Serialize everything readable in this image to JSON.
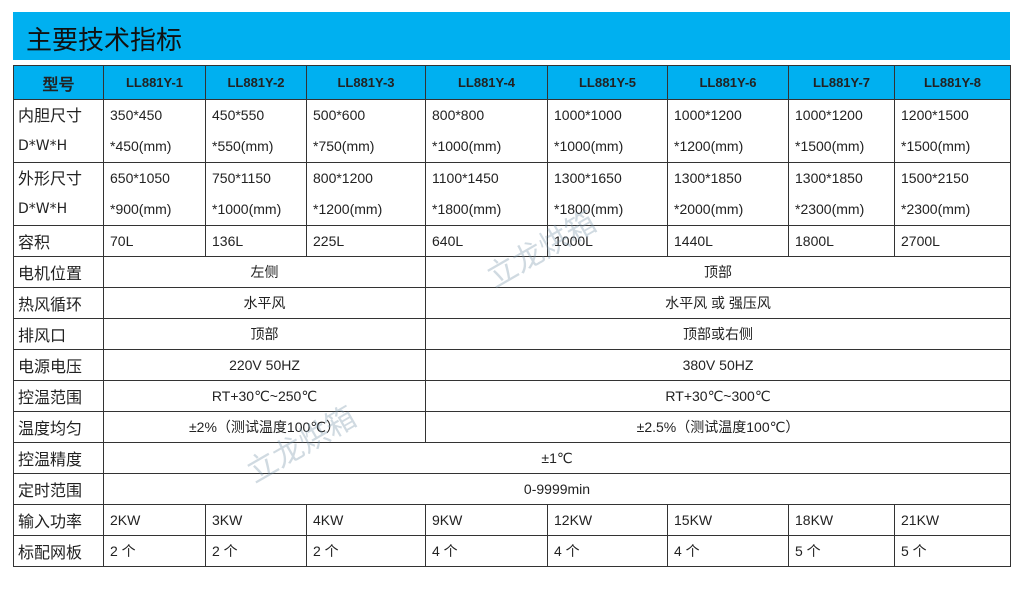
{
  "title": "主要技术指标",
  "watermark": "立龙烘箱",
  "header": {
    "label": "型号",
    "models": [
      "LL881Y-1",
      "LL881Y-2",
      "LL881Y-3",
      "LL881Y-4",
      "LL881Y-5",
      "LL881Y-6",
      "LL881Y-7",
      "LL881Y-8"
    ]
  },
  "inner_size": {
    "label1": "内胆尺寸",
    "label2": "D*W*H",
    "values": [
      [
        "350*450",
        "*450(mm)"
      ],
      [
        "450*550",
        "*550(mm)"
      ],
      [
        "500*600",
        "*750(mm)"
      ],
      [
        "800*800",
        "*1000(mm)"
      ],
      [
        "1000*1000",
        "*1000(mm)"
      ],
      [
        "1000*1200",
        "*1200(mm)"
      ],
      [
        "1000*1200",
        "*1500(mm)"
      ],
      [
        "1200*1500",
        "*1500(mm)"
      ]
    ]
  },
  "outer_size": {
    "label1": "外形尺寸",
    "label2": "D*W*H",
    "values": [
      [
        "650*1050",
        "*900(mm)"
      ],
      [
        "750*1150",
        "*1000(mm)"
      ],
      [
        "800*1200",
        "*1200(mm)"
      ],
      [
        "1100*1450",
        "*1800(mm)"
      ],
      [
        "1300*1650",
        "*1800(mm)"
      ],
      [
        "1300*1850",
        "*2000(mm)"
      ],
      [
        "1300*1850",
        "*2300(mm)"
      ],
      [
        "1500*2150",
        "*2300(mm)"
      ]
    ]
  },
  "volume": {
    "label": "容积",
    "values": [
      "70L",
      "136L",
      "225L",
      "640L",
      "1000L",
      "1440L",
      "1800L",
      "2700L"
    ]
  },
  "motor": {
    "label": "电机位置",
    "a": "左侧",
    "b": "顶部"
  },
  "airflow": {
    "label": "热风循环",
    "a": "水平风",
    "b": "水平风 或 强压风"
  },
  "exhaust": {
    "label": "排风口",
    "a": "顶部",
    "b": "顶部或右侧"
  },
  "voltage": {
    "label": "电源电压",
    "a": "220V 50HZ",
    "b": "380V 50HZ"
  },
  "temp_range": {
    "label": "控温范围",
    "a": "RT+30℃~250℃",
    "b": "RT+30℃~300℃"
  },
  "uniformity": {
    "label": "温度均匀",
    "a": "±2%（测试温度100℃）",
    "b": "±2.5%（测试温度100℃）"
  },
  "precision": {
    "label": "控温精度",
    "value": "±1℃"
  },
  "timer": {
    "label": "定时范围",
    "value": "0-9999min"
  },
  "power": {
    "label": "输入功率",
    "values": [
      "2KW",
      "3KW",
      "4KW",
      "9KW",
      "12KW",
      "15KW",
      "18KW",
      "21KW"
    ]
  },
  "mesh": {
    "label": "标配网板",
    "values": [
      "2 个",
      "2 个",
      "2 个",
      "4 个",
      "4 个",
      "4 个",
      "5 个",
      "5 个"
    ]
  },
  "colors": {
    "header_bg": "#00b0f0"
  }
}
